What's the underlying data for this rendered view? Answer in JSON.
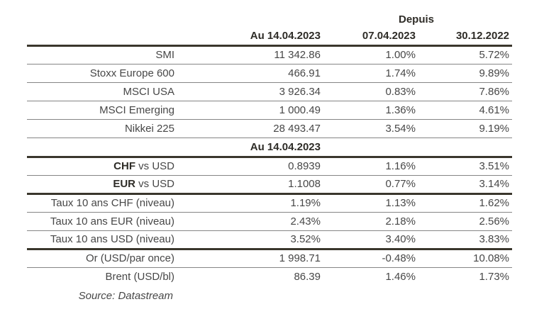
{
  "colors": {
    "thick_rule": "#3a362c",
    "thin_rule": "#858585",
    "header_text": "#2e2c27",
    "body_text": "#474747",
    "background": "#ffffff"
  },
  "table": {
    "depuis_label": "Depuis",
    "col_headers": [
      "Au 14.04.2023",
      "07.04.2023",
      "30.12.2022"
    ],
    "mid_header": "Au 14.04.2023",
    "rows": [
      {
        "label": "SMI",
        "values": [
          "11 342.86",
          "1.00%",
          "5.72%"
        ]
      },
      {
        "label": "Stoxx Europe 600",
        "values": [
          "466.91",
          "1.74%",
          "9.89%"
        ]
      },
      {
        "label": "MSCI USA",
        "values": [
          "3 926.34",
          "0.83%",
          "7.86%"
        ]
      },
      {
        "label": "MSCI Emerging",
        "values": [
          "1 000.49",
          "1.36%",
          "4.61%"
        ]
      },
      {
        "label": "Nikkei 225",
        "values": [
          "28 493.47",
          "3.54%",
          "9.19%"
        ]
      },
      {
        "label_bold": "CHF",
        "label_rest": " vs USD",
        "values": [
          "0.8939",
          "1.16%",
          "3.51%"
        ]
      },
      {
        "label_bold": "EUR",
        "label_rest": " vs USD",
        "values": [
          "1.1008",
          "0.77%",
          "3.14%"
        ]
      },
      {
        "label": "Taux 10 ans CHF (niveau)",
        "values": [
          "1.19%",
          "1.13%",
          "1.62%"
        ]
      },
      {
        "label": "Taux 10 ans EUR (niveau)",
        "values": [
          "2.43%",
          "2.18%",
          "2.56%"
        ]
      },
      {
        "label": "Taux 10 ans USD (niveau)",
        "values": [
          "3.52%",
          "3.40%",
          "3.83%"
        ]
      },
      {
        "label": "Or (USD/par once)",
        "values": [
          "1 998.71",
          "-0.48%",
          "10.08%"
        ]
      },
      {
        "label": "Brent (USD/bl)",
        "values": [
          "86.39",
          "1.46%",
          "1.73%"
        ]
      }
    ],
    "source_note": "Source: Datastream"
  }
}
